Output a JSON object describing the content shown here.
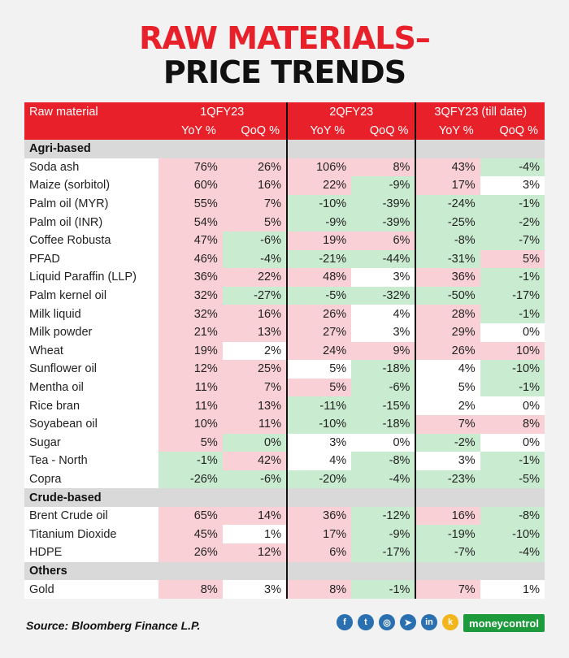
{
  "title": {
    "line1": "RAW MATERIALS–",
    "line2": "PRICE TRENDS"
  },
  "header": {
    "first": "Raw material",
    "periods": [
      "1QFY23",
      "2QFY23",
      "3QFY23 (till date)"
    ],
    "yoy": "YoY %",
    "qoq": "QoQ %"
  },
  "sections": [
    {
      "name": "Agri-based",
      "rows": [
        {
          "name": "Soda ash",
          "v": [
            "76%",
            "26%",
            "106%",
            "8%",
            "43%",
            "-4%"
          ]
        },
        {
          "name": "Maize (sorbitol)",
          "v": [
            "60%",
            "16%",
            "22%",
            "-9%",
            "17%",
            "3%"
          ]
        },
        {
          "name": "Palm oil (MYR)",
          "v": [
            "55%",
            "7%",
            "-10%",
            "-39%",
            "-24%",
            "-1%"
          ]
        },
        {
          "name": "Palm oil (INR)",
          "v": [
            "54%",
            "5%",
            "-9%",
            "-39%",
            "-25%",
            "-2%"
          ]
        },
        {
          "name": "Coffee Robusta",
          "v": [
            "47%",
            "-6%",
            "19%",
            "6%",
            "-8%",
            "-7%"
          ]
        },
        {
          "name": "PFAD",
          "v": [
            "46%",
            "-4%",
            "-21%",
            "-44%",
            "-31%",
            "5%"
          ]
        },
        {
          "name": "Liquid Paraffin (LLP)",
          "v": [
            "36%",
            "22%",
            "48%",
            "3%",
            "36%",
            "-1%"
          ]
        },
        {
          "name": "Palm kernel oil",
          "v": [
            "32%",
            "-27%",
            "-5%",
            "-32%",
            "-50%",
            "-17%"
          ]
        },
        {
          "name": "Milk liquid",
          "v": [
            "32%",
            "16%",
            "26%",
            "4%",
            "28%",
            "-1%"
          ]
        },
        {
          "name": "Milk powder",
          "v": [
            "21%",
            "13%",
            "27%",
            "3%",
            "29%",
            "0%"
          ]
        },
        {
          "name": "Wheat",
          "v": [
            "19%",
            "2%",
            "24%",
            "9%",
            "26%",
            "10%"
          ]
        },
        {
          "name": "Sunflower oil",
          "v": [
            "12%",
            "25%",
            "5%",
            "-18%",
            "4%",
            "-10%"
          ]
        },
        {
          "name": "Mentha oil",
          "v": [
            "11%",
            "7%",
            "5%",
            "-6%",
            "5%",
            "-1%"
          ]
        },
        {
          "name": "Rice bran",
          "v": [
            "11%",
            "13%",
            "-11%",
            "-15%",
            "2%",
            "0%"
          ]
        },
        {
          "name": "Soyabean oil",
          "v": [
            "10%",
            "11%",
            "-10%",
            "-18%",
            "7%",
            "8%"
          ]
        },
        {
          "name": "Sugar",
          "v": [
            "5%",
            "0%",
            "3%",
            "0%",
            "-2%",
            "0%"
          ]
        },
        {
          "name": "Tea - North",
          "v": [
            "-1%",
            "42%",
            "4%",
            "-8%",
            "3%",
            "-1%"
          ]
        },
        {
          "name": "Copra",
          "v": [
            "-26%",
            "-6%",
            "-20%",
            "-4%",
            "-23%",
            "-5%"
          ]
        }
      ]
    },
    {
      "name": "Crude-based",
      "rows": [
        {
          "name": "Brent Crude oil",
          "v": [
            "65%",
            "14%",
            "36%",
            "-12%",
            "16%",
            "-8%"
          ]
        },
        {
          "name": "Titanium Dioxide",
          "v": [
            "45%",
            "1%",
            "17%",
            "-9%",
            "-19%",
            "-10%"
          ]
        },
        {
          "name": "HDPE",
          "v": [
            "26%",
            "12%",
            "6%",
            "-17%",
            "-7%",
            "-4%"
          ]
        }
      ]
    },
    {
      "name": "Others",
      "rows": [
        {
          "name": "Gold",
          "v": [
            "8%",
            "3%",
            "8%",
            "-1%",
            "7%",
            "1%"
          ]
        }
      ]
    }
  ],
  "cell_colors": {
    "Soda ash": [
      "pos",
      "pos",
      "pos",
      "pos",
      "pos",
      "neg"
    ],
    "Maize (sorbitol)": [
      "pos",
      "pos",
      "pos",
      "neg",
      "pos",
      "zero"
    ],
    "Palm oil (MYR)": [
      "pos",
      "pos",
      "neg",
      "neg",
      "neg",
      "neg"
    ],
    "Palm oil (INR)": [
      "pos",
      "pos",
      "neg",
      "neg",
      "neg",
      "neg"
    ],
    "Coffee Robusta": [
      "pos",
      "neg",
      "pos",
      "pos",
      "neg",
      "neg"
    ],
    "PFAD": [
      "pos",
      "neg",
      "neg",
      "neg",
      "neg",
      "pos"
    ],
    "Liquid Paraffin (LLP)": [
      "pos",
      "pos",
      "pos",
      "zero",
      "pos",
      "neg"
    ],
    "Palm kernel oil": [
      "pos",
      "neg",
      "neg",
      "neg",
      "neg",
      "neg"
    ],
    "Milk liquid": [
      "pos",
      "pos",
      "pos",
      "zero",
      "pos",
      "neg"
    ],
    "Milk powder": [
      "pos",
      "pos",
      "pos",
      "zero",
      "pos",
      "zero"
    ],
    "Wheat": [
      "pos",
      "zero",
      "pos",
      "pos",
      "pos",
      "pos"
    ],
    "Sunflower oil": [
      "pos",
      "pos",
      "zero",
      "neg",
      "zero",
      "neg"
    ],
    "Mentha oil": [
      "pos",
      "pos",
      "pos",
      "neg",
      "zero",
      "neg"
    ],
    "Rice bran": [
      "pos",
      "pos",
      "neg",
      "neg",
      "zero",
      "zero"
    ],
    "Soyabean oil": [
      "pos",
      "pos",
      "neg",
      "neg",
      "pos",
      "pos"
    ],
    "Sugar": [
      "pos",
      "neg",
      "zero",
      "zero",
      "neg",
      "zero"
    ],
    "Tea - North": [
      "neg",
      "pos",
      "zero",
      "neg",
      "zero",
      "neg"
    ],
    "Copra": [
      "neg",
      "neg",
      "neg",
      "neg",
      "neg",
      "neg"
    ],
    "Brent Crude oil": [
      "pos",
      "pos",
      "pos",
      "neg",
      "pos",
      "neg"
    ],
    "Titanium Dioxide": [
      "pos",
      "zero",
      "pos",
      "neg",
      "neg",
      "neg"
    ],
    "HDPE": [
      "pos",
      "pos",
      "pos",
      "neg",
      "neg",
      "neg"
    ],
    "Gold": [
      "pos",
      "zero",
      "pos",
      "neg",
      "pos",
      "zero"
    ]
  },
  "footer": {
    "source": "Source: Bloomberg Finance L.P.",
    "brand": "moneycontrol"
  },
  "social_icons": [
    "facebook-icon",
    "twitter-icon",
    "instagram-icon",
    "telegram-icon",
    "linkedin-icon",
    "koo-icon"
  ],
  "colors": {
    "accent": "#e8202a",
    "pos": "#f9d0d6",
    "neg": "#c9ecd0",
    "section": "#d9d9d9"
  }
}
